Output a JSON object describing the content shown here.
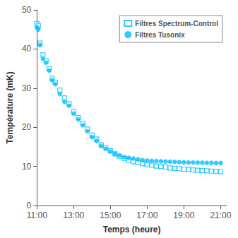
{
  "chart_data": {
    "type": "scatter",
    "title": "",
    "xlabel": "Temps (heure)",
    "ylabel": "Température (mK)",
    "xlim": [
      11.0,
      21.33
    ],
    "xticks": [
      {
        "value": 11.0,
        "label": "11:00"
      },
      {
        "value": 13.0,
        "label": "13:00"
      },
      {
        "value": 15.0,
        "label": "15:00"
      },
      {
        "value": 17.0,
        "label": "17:00"
      },
      {
        "value": 19.0,
        "label": "19:00"
      },
      {
        "value": 21.0,
        "label": "21:00"
      }
    ],
    "ylim": [
      0,
      50
    ],
    "yticks": [
      0,
      10,
      20,
      30,
      40,
      50
    ],
    "grid": false,
    "legend": "upper right",
    "series": [
      {
        "name": "Filtres Spectrum-Control",
        "color": "#00BFFF",
        "marker": "open_square",
        "x": [
          11.0,
          11.08,
          11.17,
          11.33,
          11.5,
          11.67,
          11.83,
          12.0,
          12.25,
          12.5,
          12.75,
          13.0,
          13.25,
          13.5,
          13.75,
          14.0,
          14.25,
          14.5,
          14.75,
          15.0,
          15.25,
          15.5,
          15.75,
          16.0,
          16.25,
          16.5,
          16.75,
          17.0,
          17.25,
          17.5,
          17.75,
          18.0,
          18.25,
          18.5,
          18.75,
          19.0,
          19.25,
          19.5,
          19.75,
          20.0,
          20.25,
          20.5,
          20.75,
          21.0
        ],
        "values": [
          46.5,
          46.0,
          41.5,
          38.5,
          37.0,
          35.0,
          32.5,
          31.5,
          29.5,
          27.5,
          26.0,
          24.0,
          22.5,
          21.0,
          19.5,
          18.0,
          17.0,
          15.5,
          14.8,
          14.0,
          13.2,
          12.5,
          12.0,
          11.5,
          11.2,
          11.0,
          10.7,
          10.5,
          10.3,
          10.1,
          10.0,
          9.8,
          9.6,
          9.5,
          9.4,
          9.3,
          9.2,
          9.1,
          9.0,
          8.9,
          8.85,
          8.8,
          8.75,
          8.6
        ]
      },
      {
        "name": "Filtres Tusonix",
        "color": "#00BFFF",
        "marker": "circle",
        "x": [
          11.0,
          11.08,
          11.17,
          11.33,
          11.5,
          11.67,
          11.83,
          12.0,
          12.25,
          12.5,
          12.75,
          13.0,
          13.25,
          13.5,
          13.75,
          14.0,
          14.25,
          14.5,
          14.75,
          15.0,
          15.25,
          15.5,
          15.75,
          16.0,
          16.25,
          16.5,
          16.75,
          17.0,
          17.25,
          17.5,
          17.75,
          18.0,
          18.25,
          18.5,
          18.75,
          19.0,
          19.25,
          19.5,
          19.75,
          20.0,
          20.25,
          20.5,
          20.75,
          21.0
        ],
        "values": [
          45.5,
          45.0,
          41.0,
          37.5,
          36.5,
          34.5,
          32.0,
          31.0,
          28.5,
          26.5,
          25.5,
          23.5,
          22.0,
          20.5,
          19.0,
          17.5,
          16.5,
          15.2,
          14.5,
          13.8,
          13.2,
          12.8,
          12.4,
          12.2,
          12.0,
          11.8,
          11.6,
          11.5,
          11.4,
          11.35,
          11.3,
          11.25,
          11.2,
          11.15,
          11.1,
          11.05,
          11.0,
          11.0,
          10.95,
          10.95,
          10.9,
          10.9,
          10.85,
          10.85
        ]
      }
    ]
  }
}
